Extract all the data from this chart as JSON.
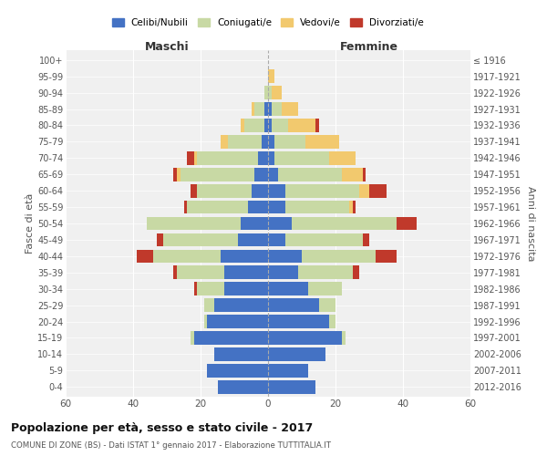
{
  "age_groups": [
    "0-4",
    "5-9",
    "10-14",
    "15-19",
    "20-24",
    "25-29",
    "30-34",
    "35-39",
    "40-44",
    "45-49",
    "50-54",
    "55-59",
    "60-64",
    "65-69",
    "70-74",
    "75-79",
    "80-84",
    "85-89",
    "90-94",
    "95-99",
    "100+"
  ],
  "birth_years": [
    "2012-2016",
    "2007-2011",
    "2002-2006",
    "1997-2001",
    "1992-1996",
    "1987-1991",
    "1982-1986",
    "1977-1981",
    "1972-1976",
    "1967-1971",
    "1962-1966",
    "1957-1961",
    "1952-1956",
    "1947-1951",
    "1942-1946",
    "1937-1941",
    "1932-1936",
    "1927-1931",
    "1922-1926",
    "1917-1921",
    "≤ 1916"
  ],
  "maschi": {
    "celibi": [
      15,
      18,
      16,
      22,
      18,
      16,
      13,
      13,
      14,
      9,
      8,
      6,
      5,
      4,
      3,
      2,
      1,
      1,
      0,
      0,
      0
    ],
    "coniugati": [
      0,
      0,
      0,
      1,
      1,
      3,
      8,
      14,
      20,
      22,
      28,
      18,
      16,
      22,
      18,
      10,
      6,
      3,
      1,
      0,
      0
    ],
    "vedovi": [
      0,
      0,
      0,
      0,
      0,
      0,
      0,
      0,
      0,
      0,
      0,
      0,
      0,
      1,
      1,
      2,
      1,
      1,
      0,
      0,
      0
    ],
    "divorziati": [
      0,
      0,
      0,
      0,
      0,
      0,
      1,
      1,
      5,
      2,
      0,
      1,
      2,
      1,
      2,
      0,
      0,
      0,
      0,
      0,
      0
    ]
  },
  "femmine": {
    "nubili": [
      14,
      12,
      17,
      22,
      18,
      15,
      12,
      9,
      10,
      5,
      7,
      5,
      5,
      3,
      2,
      2,
      1,
      1,
      0,
      0,
      0
    ],
    "coniugate": [
      0,
      0,
      0,
      1,
      2,
      5,
      10,
      16,
      22,
      23,
      31,
      19,
      22,
      19,
      16,
      9,
      5,
      3,
      1,
      0,
      0
    ],
    "vedove": [
      0,
      0,
      0,
      0,
      0,
      0,
      0,
      0,
      0,
      0,
      0,
      1,
      3,
      6,
      8,
      10,
      8,
      5,
      3,
      2,
      0
    ],
    "divorziate": [
      0,
      0,
      0,
      0,
      0,
      0,
      0,
      2,
      6,
      2,
      6,
      1,
      5,
      1,
      0,
      0,
      1,
      0,
      0,
      0,
      0
    ]
  },
  "colors": {
    "celibi": "#4472C4",
    "coniugati": "#C8D9A4",
    "vedovi": "#F2C96E",
    "divorziati": "#C0392B"
  },
  "xlim": 60,
  "title": "Popolazione per età, sesso e stato civile - 2017",
  "subtitle": "COMUNE DI ZONE (BS) - Dati ISTAT 1° gennaio 2017 - Elaborazione TUTTITALIA.IT",
  "ylabel_left": "Fasce di età",
  "ylabel_right": "Anni di nascita",
  "xlabel_maschi": "Maschi",
  "xlabel_femmine": "Femmine",
  "legend_labels": [
    "Celibi/Nubili",
    "Coniugati/e",
    "Vedovi/e",
    "Divorziati/e"
  ],
  "bg_color": "#f0f0f0"
}
